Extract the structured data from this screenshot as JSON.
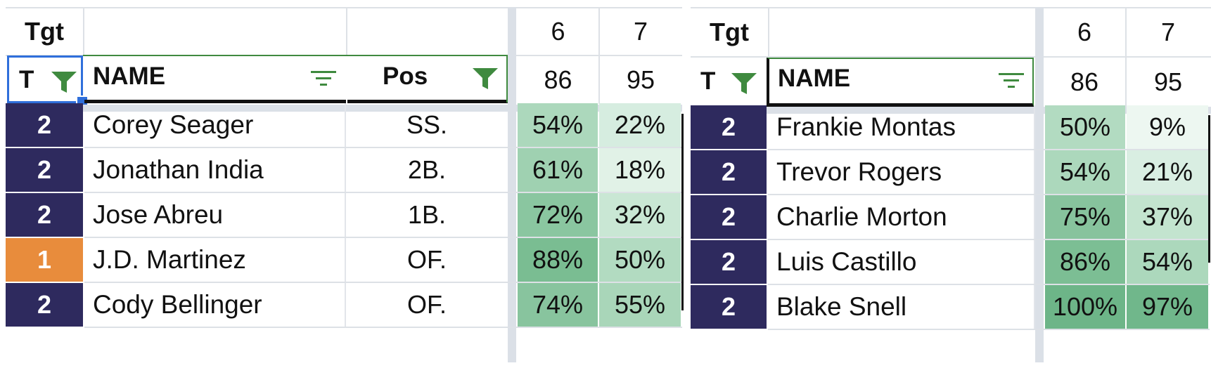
{
  "colors": {
    "tier2": "#2e2a5e",
    "tier1": "#e88c3c",
    "filter_green": "#3f8a3f",
    "selection_blue": "#2f6fdb"
  },
  "left_table": {
    "tgt_label": "Tgt",
    "col_t_label": "T",
    "col_name_label": "NAME",
    "col_pos_label": "Pos",
    "week_cols": [
      {
        "num": "6",
        "sub": "86"
      },
      {
        "num": "7",
        "sub": "95"
      }
    ],
    "rows": [
      {
        "tier": "2",
        "tier_color": "#2e2a5e",
        "name": "Corey Seager",
        "pos": "SS.",
        "v1": "54%",
        "v2": "22%",
        "v1_color": "#acd8bc",
        "v2_color": "#d6ede0"
      },
      {
        "tier": "2",
        "tier_color": "#2e2a5e",
        "name": "Jonathan India",
        "pos": "2B.",
        "v1": "61%",
        "v2": "18%",
        "v1_color": "#9fd1b1",
        "v2_color": "#e1f2e7"
      },
      {
        "tier": "2",
        "tier_color": "#2e2a5e",
        "name": "Jose Abreu",
        "pos": "1B.",
        "v1": "72%",
        "v2": "32%",
        "v1_color": "#8ac6a0",
        "v2_color": "#c9e7d4"
      },
      {
        "tier": "1",
        "tier_color": "#e88c3c",
        "name": "J.D. Martinez",
        "pos": "OF.",
        "v1": "88%",
        "v2": "50%",
        "v1_color": "#7abd92",
        "v2_color": "#b2dbc1"
      },
      {
        "tier": "2",
        "tier_color": "#2e2a5e",
        "name": "Cody Bellinger",
        "pos": "OF.",
        "v1": "74%",
        "v2": "55%",
        "v1_color": "#88c49e",
        "v2_color": "#a9d6b9"
      }
    ]
  },
  "right_table": {
    "tgt_label": "Tgt",
    "col_t_label": "T",
    "col_name_label": "NAME",
    "week_cols": [
      {
        "num": "6",
        "sub": "86"
      },
      {
        "num": "7",
        "sub": "95"
      }
    ],
    "rows": [
      {
        "tier": "2",
        "tier_color": "#2e2a5e",
        "name": "Frankie Montas",
        "v1": "50%",
        "v2": "9%",
        "v1_color": "#b2dbc1",
        "v2_color": "#edf7f1"
      },
      {
        "tier": "2",
        "tier_color": "#2e2a5e",
        "name": "Trevor Rogers",
        "v1": "54%",
        "v2": "21%",
        "v1_color": "#acd8bc",
        "v2_color": "#d9eee2"
      },
      {
        "tier": "2",
        "tier_color": "#2e2a5e",
        "name": "Charlie Morton",
        "v1": "75%",
        "v2": "37%",
        "v1_color": "#87c39d",
        "v2_color": "#c3e4cf"
      },
      {
        "tier": "2",
        "tier_color": "#2e2a5e",
        "name": "Luis Castillo",
        "v1": "86%",
        "v2": "54%",
        "v1_color": "#7cbe94",
        "v2_color": "#acd8bc"
      },
      {
        "tier": "2",
        "tier_color": "#2e2a5e",
        "name": "Blake Snell",
        "v1": "100%",
        "v2": "97%",
        "v1_color": "#6db588",
        "v2_color": "#70b78b"
      }
    ]
  }
}
